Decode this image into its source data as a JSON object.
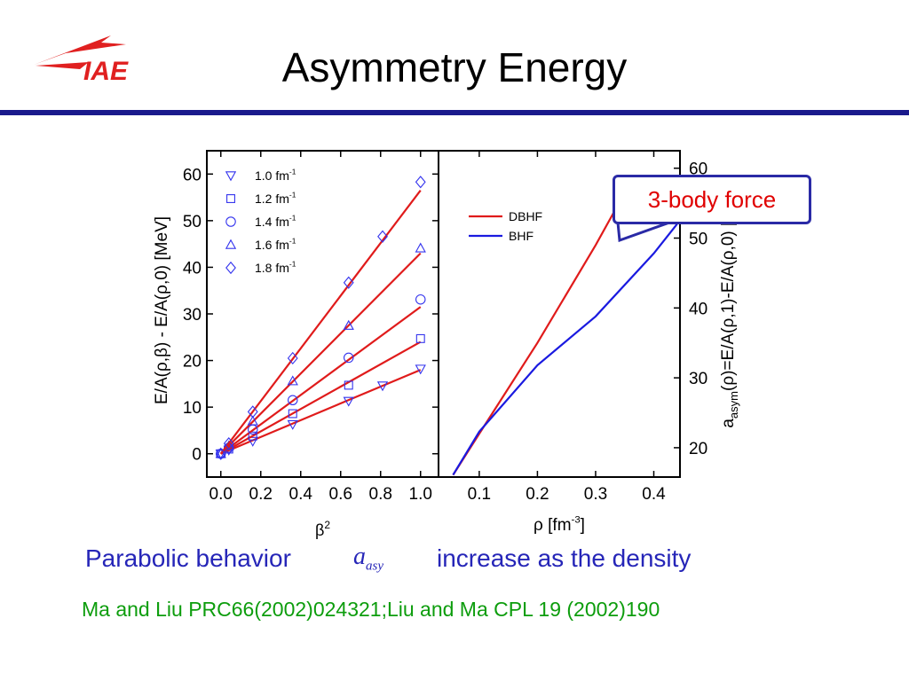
{
  "slide": {
    "title": "Asymmetry Energy",
    "logo_text": "IAE",
    "statement_left": "Parabolic behavior",
    "statement_symbol_base": "a",
    "statement_symbol_sub": "asy",
    "statement_right": "increase as the density",
    "reference": "Ma and Liu PRC66(2002)024321;Liu and Ma CPL 19 (2002)190",
    "callout": "3-body force"
  },
  "colors": {
    "title_rule": "#1a1a8c",
    "statement": "#2626b8",
    "reference": "#0d9d0d",
    "callout_text": "#e00000",
    "callout_border": "#2a2aa6",
    "fit_line": "#e01b1b",
    "marker": "#3333ee",
    "logo": "#e02020"
  },
  "chart_data": [
    {
      "type": "scatter",
      "xlabel": "β²",
      "ylabel": "E/A(ρ,β) - E/A(ρ,0) [MeV]",
      "xlim": [
        -0.07,
        1.09
      ],
      "ylim": [
        -5,
        65
      ],
      "xticks": [
        "0.0",
        "0.2",
        "0.4",
        "0.6",
        "0.8",
        "1.0"
      ],
      "yticks": [
        "0",
        "10",
        "20",
        "30",
        "40",
        "50",
        "60"
      ],
      "legend_position": "top-left",
      "series": [
        {
          "name": "1.0 fm-1",
          "marker": "triangle-down",
          "slope": 18,
          "x": [
            0,
            0.04,
            0.16,
            0.36,
            0.64,
            0.81,
            1.0
          ],
          "y": [
            0,
            0.8,
            2.7,
            6.3,
            11.3,
            14.6,
            18.2
          ]
        },
        {
          "name": "1.2 fm-1",
          "marker": "square",
          "slope": 24,
          "x": [
            0,
            0.04,
            0.16,
            0.36,
            0.64,
            1.0
          ],
          "y": [
            0,
            1.0,
            3.8,
            8.6,
            14.7,
            24.7
          ]
        },
        {
          "name": "1.4 fm-1",
          "marker": "circle",
          "slope": 31.5,
          "x": [
            0,
            0.04,
            0.16,
            0.36,
            0.64,
            1.0
          ],
          "y": [
            0,
            1.3,
            5.2,
            11.5,
            20.6,
            33.1
          ]
        },
        {
          "name": "1.6 fm-1",
          "marker": "triangle-up",
          "slope": 43,
          "x": [
            0,
            0.04,
            0.16,
            0.36,
            0.64,
            1.0
          ],
          "y": [
            0,
            1.7,
            7.0,
            15.6,
            27.5,
            44.1
          ]
        },
        {
          "name": "1.8 fm-1",
          "marker": "diamond",
          "slope": 56.5,
          "x": [
            0,
            0.04,
            0.16,
            0.36,
            0.64,
            0.81,
            1.0
          ],
          "y": [
            0,
            2.2,
            9.0,
            20.5,
            36.7,
            46.6,
            58.3
          ]
        }
      ]
    },
    {
      "type": "line",
      "xlabel": "ρ [fm-3]",
      "ylabel": "aasym(ρ)=E/A(ρ,1)-E/A(ρ,0) [MeV]",
      "xlim": [
        0.03,
        0.445
      ],
      "ylim": [
        15.8,
        62.5
      ],
      "xticks": [
        "0.1",
        "0.2",
        "0.3",
        "0.4"
      ],
      "yticks": [
        "20",
        "30",
        "40",
        "50",
        "60"
      ],
      "legend_position": "top-left",
      "series": [
        {
          "name": "DBHF",
          "color": "#e01b1b",
          "x": [
            0.055,
            0.1,
            0.2,
            0.3,
            0.36
          ],
          "y": [
            16.1,
            22.0,
            35.0,
            49.0,
            58.0
          ]
        },
        {
          "name": "BHF",
          "color": "#1a1ae0",
          "x": [
            0.055,
            0.1,
            0.2,
            0.3,
            0.4,
            0.44
          ],
          "y": [
            16.1,
            22.3,
            31.8,
            38.8,
            47.8,
            52.0
          ]
        }
      ]
    }
  ]
}
